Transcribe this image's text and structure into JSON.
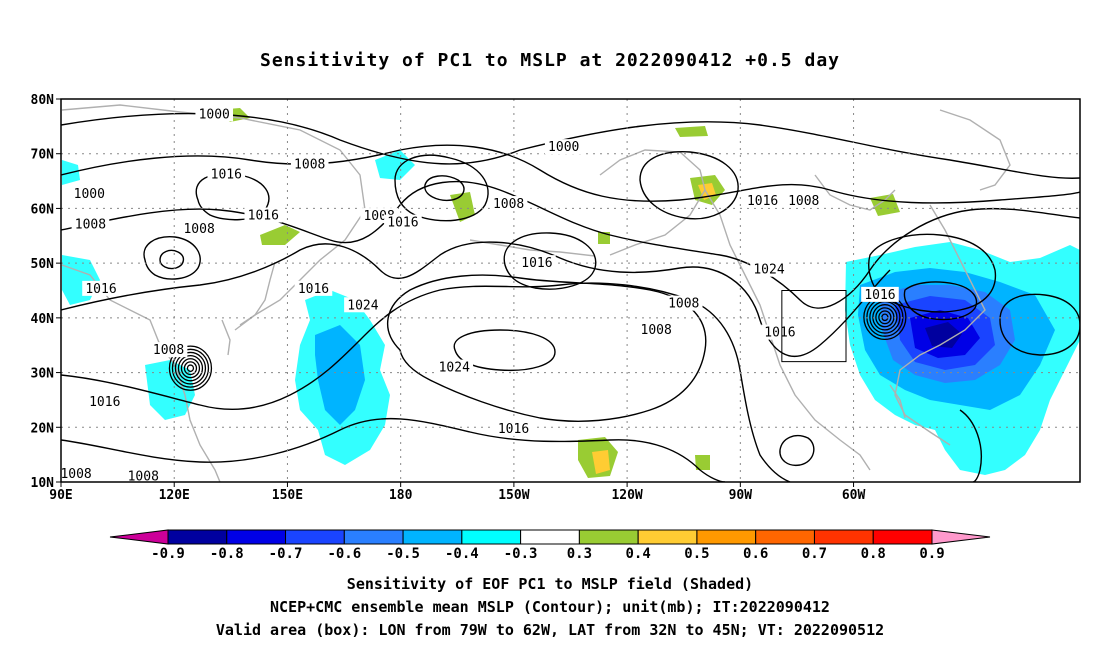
{
  "title": "Sensitivity of PC1 to MSLP at 2022090412 +0.5 day",
  "map": {
    "lat_labels": [
      "80N",
      "70N",
      "60N",
      "50N",
      "40N",
      "30N",
      "20N",
      "10N"
    ],
    "lon_labels": [
      "90E",
      "120E",
      "150E",
      "180",
      "150W",
      "120W",
      "90W",
      "60W"
    ],
    "contour_labels": [
      {
        "text": "1000",
        "lon": 130.6,
        "lat": 77.2
      },
      {
        "text": "1008",
        "lon": 155.9,
        "lat": 68.0
      },
      {
        "text": "1016",
        "lon": 133.8,
        "lat": 66.2
      },
      {
        "text": "1000",
        "lon": 97.5,
        "lat": 62.6
      },
      {
        "text": "1008",
        "lon": 97.8,
        "lat": 57.1
      },
      {
        "text": "1008",
        "lon": 126.6,
        "lat": 56.2
      },
      {
        "text": "1016",
        "lon": 143.6,
        "lat": 58.7
      },
      {
        "text": "1008",
        "lon": 174.3,
        "lat": 58.6
      },
      {
        "text": "1016",
        "lon": 180.6,
        "lat": 57.4
      },
      {
        "text": "1000",
        "lon": -136.8,
        "lat": 71.2
      },
      {
        "text": "1008",
        "lon": -151.4,
        "lat": 60.8
      },
      {
        "text": "1016",
        "lon": -143.9,
        "lat": 50.0
      },
      {
        "text": "1008",
        "lon": -73.2,
        "lat": 61.4
      },
      {
        "text": "1016",
        "lon": -84.1,
        "lat": 61.4
      },
      {
        "text": "1024",
        "lon": -82.4,
        "lat": 48.8
      },
      {
        "text": "1016",
        "lon": 100.6,
        "lat": 45.3
      },
      {
        "text": "1016",
        "lon": 156.9,
        "lat": 45.3
      },
      {
        "text": "1024",
        "lon": 170.0,
        "lat": 42.3
      },
      {
        "text": "1008",
        "lon": 118.5,
        "lat": 34.1
      },
      {
        "text": "1016",
        "lon": 101.6,
        "lat": 24.6
      },
      {
        "text": "1024",
        "lon": -165.8,
        "lat": 30.9
      },
      {
        "text": "1008",
        "lon": -105.0,
        "lat": 42.6
      },
      {
        "text": "1008",
        "lon": -112.3,
        "lat": 37.8
      },
      {
        "text": "1016",
        "lon": -79.5,
        "lat": 37.3
      },
      {
        "text": "1016",
        "lon": -53.0,
        "lat": 44.2
      },
      {
        "text": "1016",
        "lon": -150.1,
        "lat": 19.7
      },
      {
        "text": "1008",
        "lon": 94.0,
        "lat": 11.5
      },
      {
        "text": "1008",
        "lon": 111.8,
        "lat": 11.0
      }
    ],
    "valid_box": {
      "lon_min": -79,
      "lon_max": -62,
      "lat_min": 32,
      "lat_max": 45
    },
    "cyclones": [
      {
        "lon": 124.3,
        "lat": 30.8
      },
      {
        "lon": -51.7,
        "lat": 40.1
      }
    ]
  },
  "colorbar": {
    "colors": [
      "#cc0099",
      "#00009f",
      "#0000e6",
      "#1a44ff",
      "#2a7fff",
      "#00b4ff",
      "#00ffff",
      "#ffffff",
      "#99cc33",
      "#ffcc33",
      "#ff9900",
      "#ff6600",
      "#ff3300",
      "#ff0000",
      "#ff99cc"
    ],
    "labels": [
      "-0.9",
      "-0.8",
      "-0.7",
      "-0.6",
      "-0.5",
      "-0.4",
      "-0.3",
      "0.3",
      "0.4",
      "0.5",
      "0.6",
      "0.7",
      "0.8",
      "0.9"
    ]
  },
  "captions": [
    "Sensitivity of EOF PC1 to MSLP field (Shaded)",
    "NCEP+CMC ensemble mean MSLP (Contour); unit(mb); IT:2022090412",
    "Valid area (box): LON from 79W to 62W, LAT from 32N to 45N; VT: 2022090512"
  ]
}
